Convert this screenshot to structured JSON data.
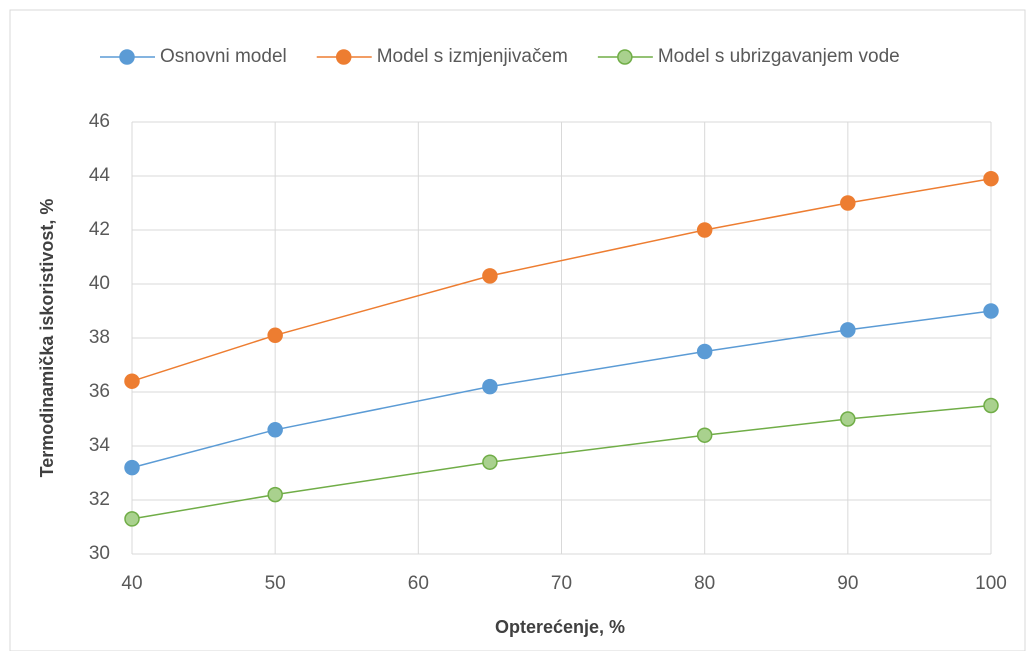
{
  "chart_data": {
    "type": "line",
    "x": [
      40,
      50,
      65,
      80,
      90,
      100
    ],
    "series": [
      {
        "name": "Osnovni model",
        "color": "#5b9bd5",
        "values": [
          33.2,
          34.6,
          36.2,
          37.5,
          38.3,
          39.0
        ]
      },
      {
        "name": "Model s izmjenjivačem",
        "color": "#ed7d31",
        "values": [
          36.4,
          38.1,
          40.3,
          42.0,
          43.0,
          43.9
        ]
      },
      {
        "name": "Model s ubrizgavanjem vode",
        "color": "#70ad47",
        "values": [
          31.3,
          32.2,
          33.4,
          34.4,
          35.0,
          35.5
        ]
      }
    ],
    "xlabel": "Opterećenje, %",
    "ylabel": "Termodinamička iskoristivost, %",
    "xlim": [
      40,
      100
    ],
    "xticks": [
      40,
      50,
      60,
      70,
      80,
      90,
      100
    ],
    "ylim": [
      30,
      46
    ],
    "yticks": [
      30,
      32,
      34,
      36,
      38,
      40,
      42,
      44,
      46
    ],
    "grid": true,
    "legend": "top"
  }
}
